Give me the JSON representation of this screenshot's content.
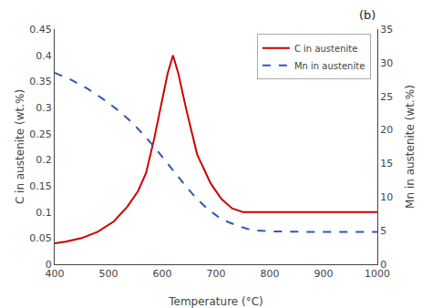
{
  "chart_data": {
    "type": "line",
    "xlabel": "Temperature (°C)",
    "ylabel": "C in austenite (wt.%)",
    "y2label": "Mn in austenite (wt.%)",
    "annotations": [
      "(b)"
    ],
    "xlim": [
      400,
      1000
    ],
    "xticks": [
      400,
      500,
      600,
      700,
      800,
      900,
      1000
    ],
    "ylim": [
      0,
      0.45
    ],
    "yticks": [
      0,
      0.05,
      0.1,
      0.15,
      0.2,
      0.25,
      0.3,
      0.35,
      0.4,
      0.45
    ],
    "y2lim": [
      0,
      35
    ],
    "y2ticks": [
      0,
      5,
      10,
      15,
      20,
      25,
      30,
      35
    ],
    "grid": false,
    "legend": "upper right",
    "series": [
      {
        "name": "C in austenite",
        "color": "#cc0000",
        "line_style": "solid",
        "axis": "y",
        "x": [
          400,
          420,
          450,
          480,
          510,
          535,
          555,
          570,
          585,
          600,
          610,
          620,
          630,
          645,
          665,
          690,
          710,
          730,
          750,
          800,
          850,
          900,
          950,
          1000
        ],
        "values": [
          0.04,
          0.043,
          0.05,
          0.062,
          0.082,
          0.11,
          0.14,
          0.175,
          0.24,
          0.315,
          0.365,
          0.4,
          0.365,
          0.295,
          0.21,
          0.155,
          0.125,
          0.107,
          0.1,
          0.1,
          0.1,
          0.1,
          0.1,
          0.1
        ]
      },
      {
        "name": "Mn in austenite",
        "color": "#3355bb",
        "line_style": "dashed",
        "axis": "y2",
        "x": [
          400,
          430,
          460,
          490,
          520,
          545,
          565,
          585,
          605,
          625,
          645,
          665,
          685,
          705,
          725,
          745,
          765,
          800,
          850,
          900,
          950,
          1000
        ],
        "values": [
          28.5,
          27.5,
          26.2,
          24.6,
          22.8,
          21.0,
          19.3,
          17.5,
          15.5,
          13.5,
          11.5,
          9.7,
          8.2,
          7.0,
          6.2,
          5.6,
          5.1,
          4.9,
          4.8,
          4.8,
          4.8,
          4.8
        ]
      }
    ]
  }
}
